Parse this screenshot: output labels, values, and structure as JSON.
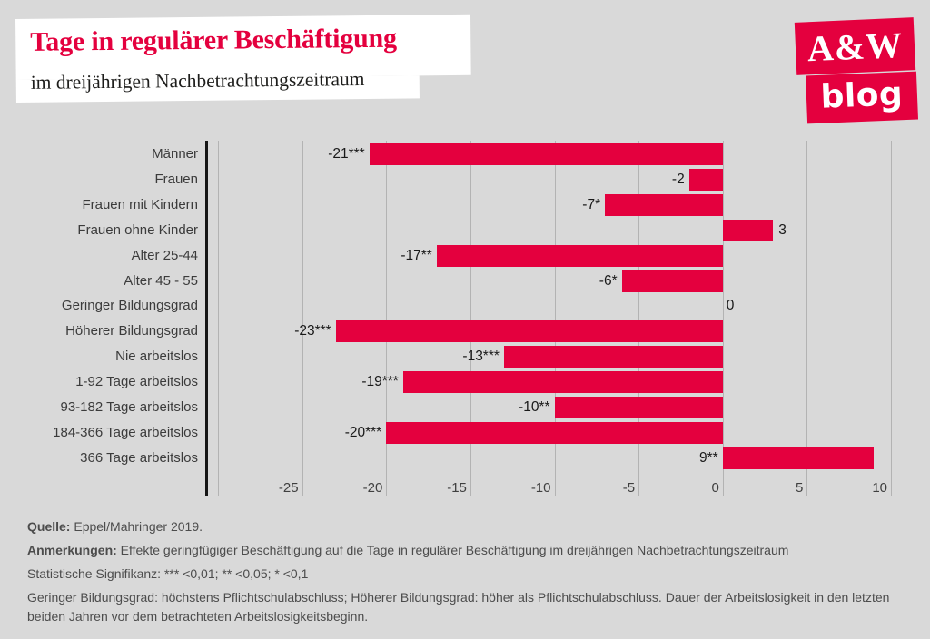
{
  "page": {
    "background": "#d9d9d9",
    "accent_red": "#e4003e"
  },
  "header": {
    "title": "Tage in regulärer Beschäftigung",
    "subtitle": "im dreijährigen Nachbetrachtungszeitraum"
  },
  "logo": {
    "line1": "A&W",
    "line2": "blog"
  },
  "chart_data": {
    "type": "bar",
    "orientation": "horizontal",
    "title": "Tage in regulärer Beschäftigung",
    "subtitle": "im dreijährigen Nachbetrachtungszeitraum",
    "categories": [
      "Männer",
      "Frauen",
      "Frauen mit Kindern",
      "Frauen ohne Kinder",
      "Alter 25-44",
      "Alter 45 - 55",
      "Geringer Bildungsgrad",
      "Höherer Bildungsgrad",
      "Nie arbeitslos",
      "1-92 Tage arbeitslos",
      "93-182 Tage arbeitslos",
      "184-366 Tage arbeitslos",
      "366 Tage arbeitslos"
    ],
    "values": [
      -21,
      -2,
      -7,
      3,
      -17,
      -6,
      0,
      -23,
      -13,
      -19,
      -10,
      -20,
      9
    ],
    "value_labels": [
      "-21***",
      "-2",
      "-7*",
      "3",
      "-17**",
      "-6*",
      "0",
      "-23***",
      "-13***",
      "-19***",
      "-10**",
      "-20***",
      "9**"
    ],
    "xticks": [
      -25,
      -20,
      -15,
      -10,
      -5,
      0,
      5,
      10
    ],
    "xtick_labels": [
      "-25",
      "-20",
      "-15",
      "-10",
      "-5",
      "0",
      "5",
      "10"
    ],
    "xlim": [
      -30,
      10
    ],
    "grid": true,
    "bar_color": "#e4003e",
    "legend": null
  },
  "footer": {
    "source_label": "Quelle:",
    "source_text": " Eppel/Mahringer 2019.",
    "notes_label": "Anmerkungen:",
    "notes_text": " Effekte geringfügiger Beschäftigung auf die Tage in regulärer Beschäftigung im dreijährigen Nachbetrachtungszeitraum",
    "significance": "Statistische Signifikanz: *** <0,01; ** <0,05; * <0,1",
    "definitions": "Geringer Bildungsgrad: höchstens Pflichtschulabschluss; Höherer Bildungsgrad: höher als Pflichtschulabschluss. Dauer der Arbeitslosigkeit in den letzten beiden Jahren vor dem betrachteten Arbeitslosigkeitsbeginn."
  }
}
